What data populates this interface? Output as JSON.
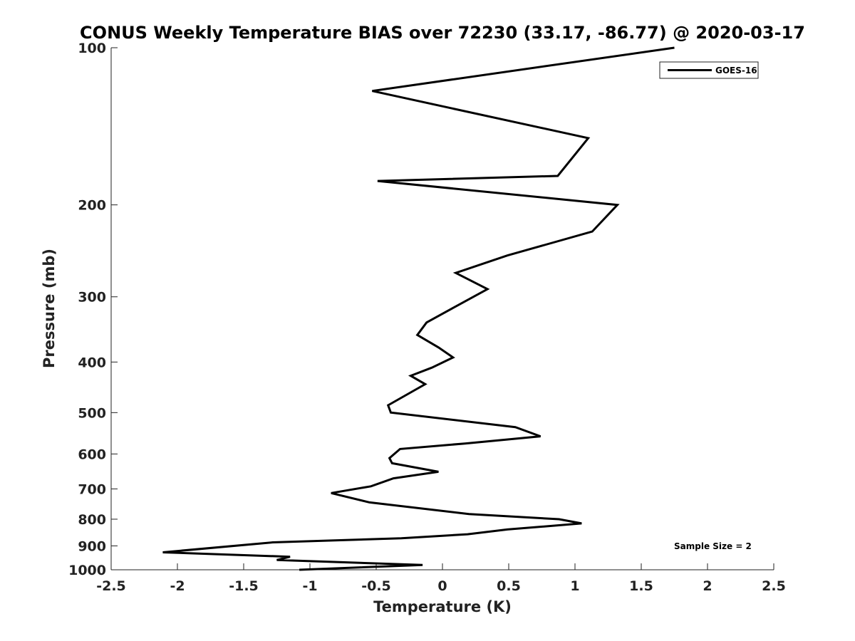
{
  "chart_data": {
    "type": "line",
    "title": "CONUS Weekly Temperature BIAS over 72230 (33.17, -86.77) @ 2020-03-17",
    "xlabel": "Temperature (K)",
    "ylabel": "Pressure (mb)",
    "xlim": [
      -2.5,
      2.5
    ],
    "ylim": [
      100,
      1000
    ],
    "y_scale": "log",
    "y_reversed": true,
    "x_ticks": [
      -2.5,
      -2,
      -1.5,
      -1,
      -0.5,
      0,
      0.5,
      1,
      1.5,
      2,
      2.5
    ],
    "x_tick_labels": [
      "-2.5",
      "-2",
      "-1.5",
      "-1",
      "-0.5",
      "0",
      "0.5",
      "1",
      "1.5",
      "2",
      "2.5"
    ],
    "y_ticks": [
      100,
      200,
      300,
      400,
      500,
      600,
      700,
      800,
      900,
      1000
    ],
    "y_tick_labels": [
      "100",
      "200",
      "300",
      "400",
      "500",
      "600",
      "700",
      "800",
      "900",
      "1000"
    ],
    "grid": false,
    "legend_position": "top-right",
    "annotation": "Sample Size = 2",
    "series": [
      {
        "name": "GOES-16",
        "color": "#000000",
        "x": [
          1.75,
          -0.53,
          1.1,
          0.87,
          -0.49,
          1.32,
          1.13,
          0.49,
          0.1,
          0.34,
          0.08,
          -0.12,
          -0.19,
          -0.03,
          0.08,
          -0.08,
          -0.24,
          -0.13,
          -0.41,
          -0.39,
          0.55,
          0.74,
          0.17,
          -0.32,
          -0.4,
          -0.38,
          -0.03,
          -0.37,
          -0.54,
          -0.84,
          -0.55,
          0.2,
          0.88,
          1.05,
          0.49,
          0.19,
          -0.31,
          -1.28,
          -2.11,
          -1.15,
          -1.25,
          -0.15,
          -1.08
        ],
        "y": [
          100,
          121,
          149,
          176,
          180,
          200,
          225,
          250,
          270,
          290,
          315,
          336,
          355,
          375,
          392,
          410,
          425,
          441,
          484,
          500,
          533,
          555,
          573,
          587,
          611,
          625,
          649,
          668,
          692,
          713,
          743,
          782,
          800,
          815,
          837,
          855,
          870,
          886,
          926,
          944,
          958,
          979,
          1000
        ]
      }
    ]
  }
}
